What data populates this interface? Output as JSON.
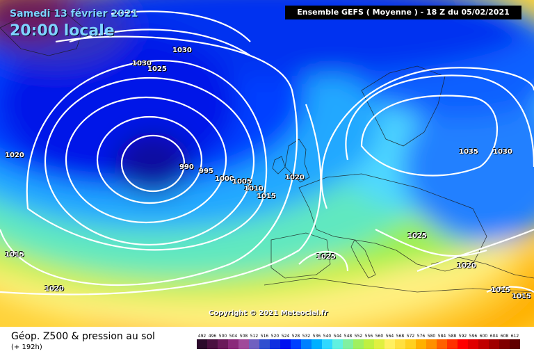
{
  "header": {
    "date": "Samedi 13 février 2021",
    "time": "20:00 locale",
    "model_banner": "Ensemble GEFS  ( Moyenne )  - 18 Z du 05/02/2021"
  },
  "map": {
    "copyright": "Copyright © 2021 Meteociel.fr",
    "pressure_labels": [
      {
        "name": "iso-1030-top-a",
        "text": "1030"
      },
      {
        "name": "iso-1030-top-b",
        "text": "1030"
      },
      {
        "name": "iso-1025-top",
        "text": "1025"
      },
      {
        "name": "iso-1020-left",
        "text": "1020"
      },
      {
        "name": "iso-990",
        "text": "990"
      },
      {
        "name": "iso-995",
        "text": "995"
      },
      {
        "name": "iso-1000",
        "text": "1000"
      },
      {
        "name": "iso-1005",
        "text": "1005"
      },
      {
        "name": "iso-1010",
        "text": "1010"
      },
      {
        "name": "iso-1015-mid",
        "text": "1015"
      },
      {
        "name": "iso-1020-mid",
        "text": "1020"
      },
      {
        "name": "iso-1035",
        "text": "1035"
      },
      {
        "name": "iso-1030-right",
        "text": "1030"
      },
      {
        "name": "iso-1025-balkan",
        "text": "1025"
      },
      {
        "name": "iso-1025-iberia",
        "text": "1025"
      },
      {
        "name": "iso-1020-east",
        "text": "1020"
      },
      {
        "name": "iso-1015-left",
        "text": "1015"
      },
      {
        "name": "iso-1020-bottom",
        "text": "1020"
      },
      {
        "name": "iso-1015-se-a",
        "text": "1015"
      },
      {
        "name": "iso-1015-se-b",
        "text": "1015"
      }
    ]
  },
  "footer": {
    "title": "Géop. Z500 & pression au sol",
    "subtitle": "(+ 192h)"
  },
  "legend": {
    "values": [
      "492",
      "496",
      "500",
      "504",
      "508",
      "512",
      "516",
      "520",
      "524",
      "528",
      "532",
      "536",
      "540",
      "544",
      "548",
      "552",
      "556",
      "560",
      "564",
      "568",
      "572",
      "576",
      "580",
      "584",
      "588",
      "592",
      "596",
      "600",
      "604",
      "608",
      "612"
    ],
    "colors": [
      "#2b0a2b",
      "#4a1040",
      "#6a1a5a",
      "#8a2a7a",
      "#a04a9a",
      "#7060c0",
      "#3050d0",
      "#1030e0",
      "#0010f0",
      "#0040ff",
      "#0080ff",
      "#00b0ff",
      "#30d8ff",
      "#60f0e0",
      "#80f0a0",
      "#a0f060",
      "#c0f040",
      "#e0f040",
      "#fff060",
      "#ffe040",
      "#ffd020",
      "#ffb000",
      "#ff9000",
      "#ff6000",
      "#ff3000",
      "#ff0000",
      "#e00000",
      "#c00000",
      "#a00000",
      "#800000",
      "#600000"
    ]
  }
}
